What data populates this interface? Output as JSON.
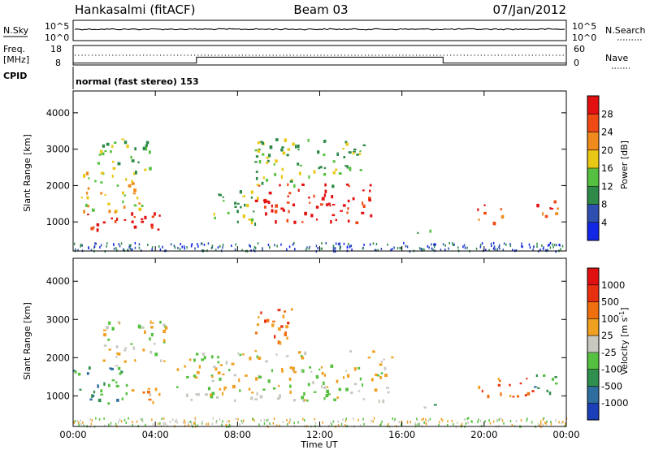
{
  "header": {
    "station": "Hankasalmi (fitACF)",
    "beam": "Beam 03",
    "date": "07/Jan/2012"
  },
  "aux_panels": {
    "nsky_label": "N.Sky",
    "nsearch_label": "N.Search",
    "noise_top_tick": "10^5",
    "noise_bottom_tick": "10^0",
    "freq_label_1": "Freq.",
    "freq_label_2": "[MHz]",
    "freq_top_tick": "18",
    "freq_bottom_tick": "8",
    "nave_label": "Nave",
    "nave_top_tick": "60",
    "nave_bottom_tick": "0",
    "cpid_label": "CPID",
    "cpid_text": "normal (fast stereo) 153",
    "frequency_series": [
      {
        "t": 0,
        "mhz": 9
      },
      {
        "t": 6,
        "mhz": 9
      },
      {
        "t": 6,
        "mhz": 12
      },
      {
        "t": 18,
        "mhz": 12
      },
      {
        "t": 18,
        "mhz": 9
      },
      {
        "t": 24,
        "mhz": 9
      }
    ]
  },
  "chart_data": [
    {
      "type": "heatmap",
      "ylabel": "Slant Range [km]",
      "ylim": [
        200,
        4600
      ],
      "yticks": [
        "1000",
        "2000",
        "3000",
        "4000"
      ],
      "xlim": [
        0,
        24
      ],
      "colorbar": {
        "label": "Power [dB]",
        "ticks": [
          "4",
          "8",
          "12",
          "16",
          "20",
          "24",
          "28"
        ],
        "colors": [
          "#1226e6",
          "#2f4fb0",
          "#2f8a4a",
          "#56c040",
          "#e8c814",
          "#f08a1c",
          "#f04a14",
          "#e21010"
        ]
      },
      "regions": [
        {
          "t0": 0.0,
          "t1": 4.2,
          "r0": 800,
          "r1": 1300,
          "level": 7
        },
        {
          "t0": 0.3,
          "t1": 3.5,
          "r0": 1300,
          "r1": 2400,
          "level": 4
        },
        {
          "t0": 1.0,
          "t1": 3.8,
          "r0": 2400,
          "r1": 3300,
          "level": 3
        },
        {
          "t0": 6.8,
          "t1": 9.0,
          "r0": 900,
          "r1": 2000,
          "level": 3
        },
        {
          "t0": 8.8,
          "t1": 14.6,
          "r0": 1000,
          "r1": 2100,
          "level": 7
        },
        {
          "t0": 8.8,
          "t1": 14.2,
          "r0": 2000,
          "r1": 3300,
          "level": 3
        },
        {
          "t0": 16.6,
          "t1": 17.6,
          "r0": 700,
          "r1": 900,
          "level": 3
        },
        {
          "t0": 19.6,
          "t1": 21.0,
          "r0": 1000,
          "r1": 1500,
          "level": 6
        },
        {
          "t0": 22.4,
          "t1": 23.6,
          "r0": 1000,
          "r1": 1600,
          "level": 6
        }
      ]
    },
    {
      "type": "heatmap",
      "ylabel": "Slant Range [km]",
      "ylim": [
        200,
        4600
      ],
      "yticks": [
        "1000",
        "2000",
        "3000",
        "4000"
      ],
      "xlim": [
        0,
        24
      ],
      "xticks": [
        "00:00",
        "04:00",
        "08:00",
        "12:00",
        "16:00",
        "20:00",
        "00:00"
      ],
      "xlabel": "Time UT",
      "colorbar": {
        "label": "Velocity [m s",
        "label_exp": "-1",
        "label_close": "]",
        "ticks": [
          "1000",
          "500",
          "100",
          "25",
          "-25",
          "-100",
          "-500",
          "-1000"
        ],
        "colors": [
          "#1a3fb8",
          "#2e6e9e",
          "#2e8f4e",
          "#56c040",
          "#c8c8c0",
          "#f0a020",
          "#f07010",
          "#e83010",
          "#e01010"
        ]
      },
      "regions": [
        {
          "t0": 0.0,
          "t1": 2.6,
          "r0": 800,
          "r1": 1800,
          "level": 2
        },
        {
          "t0": 1.2,
          "t1": 4.5,
          "r0": 1800,
          "r1": 3000,
          "level": 4
        },
        {
          "t0": 2.6,
          "t1": 4.2,
          "r0": 800,
          "r1": 1300,
          "level": 5
        },
        {
          "t0": 5.0,
          "t1": 15.5,
          "r0": 900,
          "r1": 2200,
          "level": 4
        },
        {
          "t0": 8.8,
          "t1": 11.0,
          "r0": 2400,
          "r1": 3300,
          "level": 6
        },
        {
          "t0": 16.6,
          "t1": 17.6,
          "r0": 700,
          "r1": 900,
          "level": 3
        },
        {
          "t0": 19.6,
          "t1": 22.5,
          "r0": 1000,
          "r1": 1500,
          "level": 6
        },
        {
          "t0": 22.4,
          "t1": 23.6,
          "r0": 1000,
          "r1": 1700,
          "level": 2
        }
      ]
    }
  ]
}
